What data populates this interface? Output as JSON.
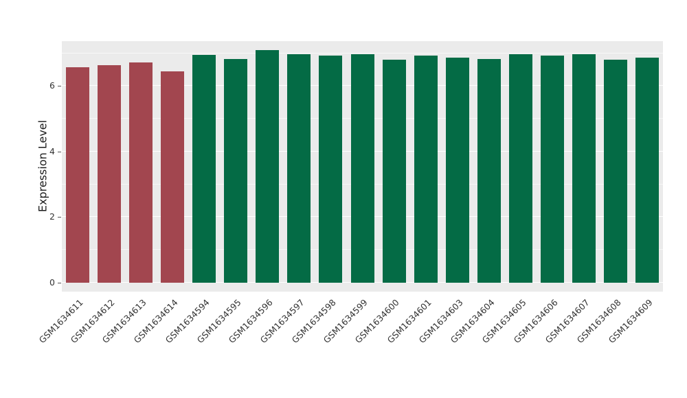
{
  "chart_data": {
    "type": "bar",
    "title": "",
    "xlabel": "",
    "ylabel": "Expression Level",
    "categories": [
      "GSM1634611",
      "GSM1634612",
      "GSM1634613",
      "GSM1634614",
      "GSM1634594",
      "GSM1634595",
      "GSM1634596",
      "GSM1634597",
      "GSM1634598",
      "GSM1634599",
      "GSM1634600",
      "GSM1634601",
      "GSM1634603",
      "GSM1634604",
      "GSM1634605",
      "GSM1634606",
      "GSM1634607",
      "GSM1634608",
      "GSM1634609"
    ],
    "values": [
      6.57,
      6.63,
      6.72,
      6.45,
      6.95,
      6.83,
      7.1,
      6.98,
      6.93,
      6.97,
      6.8,
      6.93,
      6.86,
      6.83,
      6.98,
      6.93,
      6.98,
      6.8,
      6.86
    ],
    "bar_groups": [
      "red",
      "red",
      "red",
      "red",
      "green",
      "green",
      "green",
      "green",
      "green",
      "green",
      "green",
      "green",
      "green",
      "green",
      "green",
      "green",
      "green",
      "green",
      "green"
    ],
    "group_colors": {
      "red": "#A2464F",
      "green": "#046B45"
    },
    "yticks": [
      0,
      2,
      4,
      6
    ],
    "ytick_labels": [
      "0",
      "2",
      "4",
      "6"
    ],
    "minor_yticks": [
      1,
      3,
      5,
      7
    ],
    "ylim": [
      0,
      7.37
    ],
    "grid": "on",
    "legend": "none",
    "panel_background": "#EBEBEB",
    "gridline_color": "#FFFFFF"
  }
}
